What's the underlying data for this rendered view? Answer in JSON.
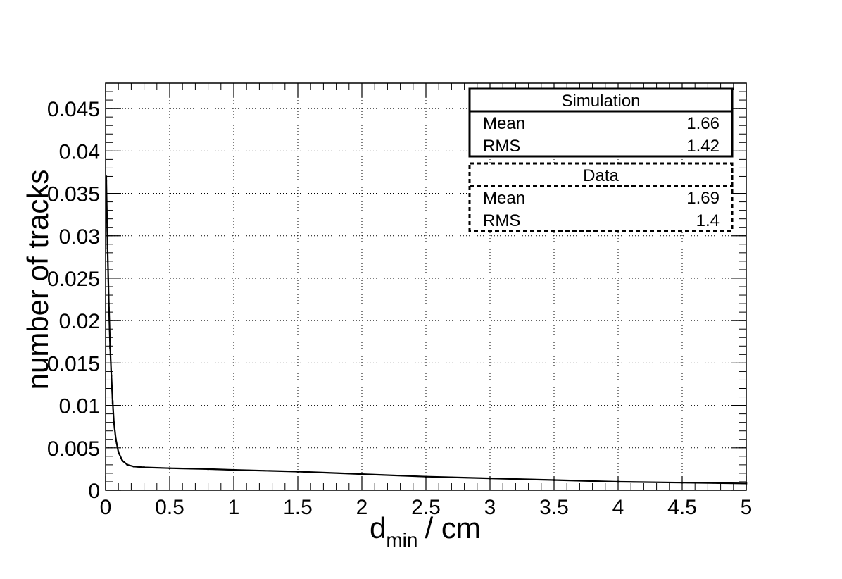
{
  "chart_data": {
    "type": "scatter",
    "xlabel": "d",
    "xlabel_subscript": "min",
    "xlabel_unit": "/ cm",
    "ylabel": "number of tracks",
    "xlim": [
      0,
      5
    ],
    "ylim": [
      0,
      0.048
    ],
    "x_ticks": [
      "0",
      "0.5",
      "1",
      "1.5",
      "2",
      "2.5",
      "3",
      "3.5",
      "4",
      "4.5",
      "5"
    ],
    "y_ticks": [
      "0",
      "0.005",
      "0.01",
      "0.015",
      "0.02",
      "0.025",
      "0.03",
      "0.035",
      "0.04",
      "0.045"
    ],
    "grid": true,
    "legend_position": "top-right",
    "series": [
      {
        "name": "Simulation",
        "line_style": "solid",
        "color": "#000000",
        "x": [
          0.005,
          0.015,
          0.025,
          0.035,
          0.045,
          0.055,
          0.065,
          0.08,
          0.1,
          0.13,
          0.17,
          0.22,
          0.3,
          0.5,
          0.8,
          1.0,
          1.5,
          2.0,
          2.5,
          3.0,
          3.5,
          4.0,
          4.5,
          5.0
        ],
        "y": [
          0.037,
          0.029,
          0.022,
          0.017,
          0.0135,
          0.0105,
          0.008,
          0.006,
          0.0045,
          0.0035,
          0.003,
          0.0028,
          0.0027,
          0.0026,
          0.0025,
          0.0024,
          0.0022,
          0.0019,
          0.0016,
          0.0014,
          0.0012,
          0.001,
          0.0009,
          0.0008
        ]
      },
      {
        "name": "Data",
        "line_style": "dashed",
        "color": "#000000",
        "x": [
          0.005,
          0.015,
          0.025,
          0.035,
          0.045,
          0.055,
          0.065,
          0.08,
          0.1,
          0.13,
          0.17,
          0.22,
          0.3,
          0.5,
          0.8,
          1.0,
          1.5,
          2.0,
          2.5,
          3.0,
          3.5,
          4.0,
          4.5,
          5.0
        ],
        "y": [
          0.0365,
          0.0285,
          0.0215,
          0.0168,
          0.0132,
          0.0103,
          0.0079,
          0.0059,
          0.0045,
          0.0035,
          0.003,
          0.0028,
          0.0027,
          0.0026,
          0.0025,
          0.0024,
          0.0022,
          0.0019,
          0.0016,
          0.0014,
          0.0012,
          0.001,
          0.0009,
          0.0008
        ]
      }
    ],
    "stats": [
      {
        "title": "Simulation",
        "border": "solid",
        "rows": [
          {
            "label": "Mean",
            "value": "1.66"
          },
          {
            "label": "RMS",
            "value": "1.42"
          }
        ]
      },
      {
        "title": "Data",
        "border": "dashed",
        "rows": [
          {
            "label": "Mean",
            "value": "1.69"
          },
          {
            "label": "RMS",
            "value": "1.4"
          }
        ]
      }
    ]
  }
}
